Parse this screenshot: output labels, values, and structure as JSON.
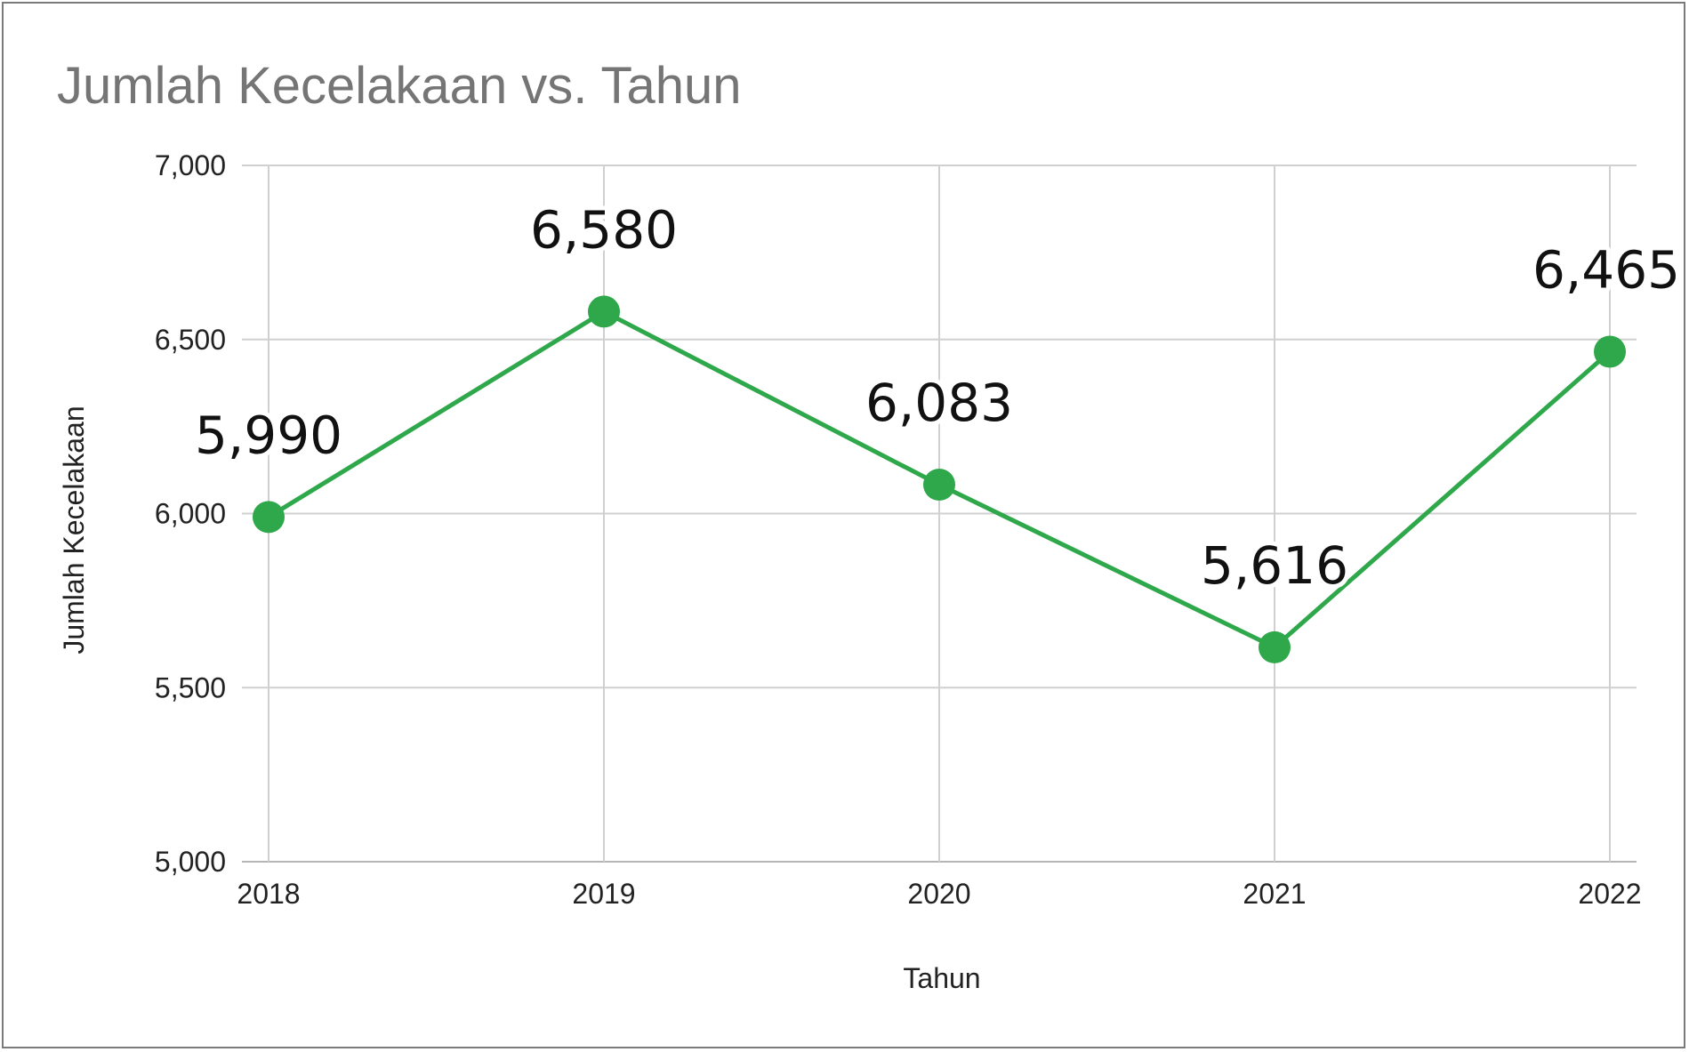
{
  "chart_data": {
    "type": "line",
    "title": "Jumlah Kecelakaan vs. Tahun",
    "xlabel": "Tahun",
    "ylabel": "Jumlah Kecelakaan",
    "categories": [
      "2018",
      "2019",
      "2020",
      "2021",
      "2022"
    ],
    "series": [
      {
        "values": [
          5990,
          6580,
          6083,
          5616,
          6465
        ],
        "color": "#2ea84a"
      }
    ],
    "data_labels": [
      "5,990",
      "6,580",
      "6,083",
      "5,616",
      "6,465"
    ],
    "ylim": [
      5000,
      7000
    ],
    "yticks": [
      5000,
      5500,
      6000,
      6500,
      7000
    ],
    "ytick_labels": [
      "5,000",
      "5,500",
      "6,000",
      "6,500",
      "7,000"
    ],
    "grid": true,
    "legend": "none"
  }
}
